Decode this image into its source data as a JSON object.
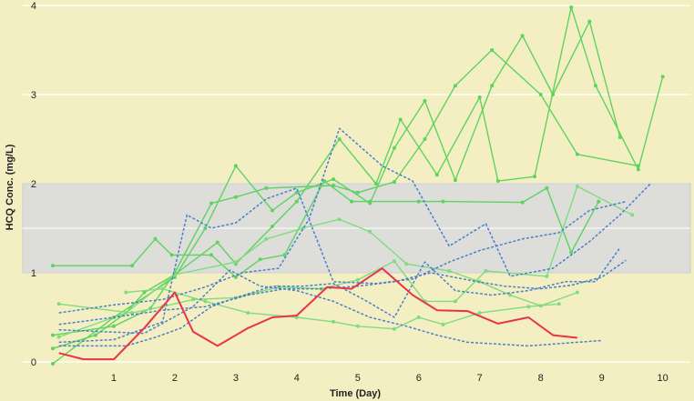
{
  "colors": {
    "background": "#f4efc3",
    "gridline": "#ffffff",
    "band_fill": "#dcdcdc",
    "band_stroke": "#c9c9c9",
    "green": "#5ed35e",
    "green_light": "#7fdc7f",
    "blue_dotted": "#4a7fc9",
    "red": "#e8334a"
  },
  "chart_data": {
    "type": "line",
    "title": "",
    "xlabel": "Time (Day)",
    "ylabel": "HCQ Conc. (mg/L)",
    "xlim": [
      0,
      10.2
    ],
    "ylim": [
      0,
      4
    ],
    "x_ticks": [
      1,
      2,
      3,
      4,
      5,
      6,
      7,
      8,
      9,
      10
    ],
    "x_tick_labels": [
      "1",
      "2",
      "3",
      "4",
      "5",
      "6",
      "7",
      "8",
      "9",
      "10"
    ],
    "y_ticks": [
      0,
      1,
      2,
      3,
      4
    ],
    "y_tick_labels": [
      "0",
      "1",
      "2",
      "3",
      "4"
    ],
    "grid": true,
    "legend": "none",
    "reference_band": {
      "y_min": 1,
      "y_max": 2,
      "midline": 1.5
    },
    "series": [
      {
        "style": "green",
        "points": [
          [
            0,
            1.08
          ],
          [
            1.3,
            1.08
          ],
          [
            1.68,
            1.38
          ],
          [
            1.95,
            1.2
          ],
          [
            2.6,
            1.2
          ],
          [
            3.0,
            0.95
          ],
          [
            3.4,
            1.15
          ],
          [
            3.8,
            1.2
          ],
          [
            4.45,
            2.03
          ],
          [
            4.9,
            1.8
          ],
          [
            5.2,
            1.8
          ],
          [
            6.0,
            1.8
          ],
          [
            6.4,
            1.8
          ],
          [
            7.7,
            1.79
          ],
          [
            8.1,
            1.95
          ],
          [
            8.5,
            1.23
          ],
          [
            8.95,
            1.8
          ]
        ]
      },
      {
        "style": "green",
        "points": [
          [
            0,
            0.15
          ],
          [
            0.7,
            0.3
          ],
          [
            1.2,
            0.55
          ],
          [
            1.5,
            0.78
          ],
          [
            2.0,
            0.98
          ],
          [
            2.7,
            1.34
          ],
          [
            3.0,
            1.1
          ],
          [
            3.6,
            1.52
          ],
          [
            4.0,
            1.8
          ],
          [
            4.7,
            2.5
          ],
          [
            5.3,
            2.0
          ],
          [
            5.7,
            2.72
          ],
          [
            6.3,
            2.1
          ],
          [
            7.0,
            2.97
          ],
          [
            7.3,
            2.03
          ],
          [
            7.9,
            2.08
          ],
          [
            8.5,
            3.98
          ],
          [
            8.9,
            3.1
          ],
          [
            9.6,
            2.16
          ],
          [
            10.0,
            3.2
          ]
        ]
      },
      {
        "style": "green",
        "points": [
          [
            0,
            -0.02
          ],
          [
            1.0,
            0.5
          ],
          [
            2.0,
            0.95
          ],
          [
            2.5,
            1.5
          ],
          [
            3.0,
            2.2
          ],
          [
            3.6,
            1.7
          ],
          [
            4.0,
            1.9
          ],
          [
            4.6,
            2.05
          ],
          [
            5.2,
            1.78
          ],
          [
            5.6,
            2.4
          ],
          [
            6.1,
            2.93
          ],
          [
            6.6,
            2.04
          ],
          [
            7.2,
            3.1
          ],
          [
            7.7,
            3.66
          ],
          [
            8.2,
            3.0
          ],
          [
            8.8,
            3.82
          ],
          [
            9.3,
            2.52
          ]
        ]
      },
      {
        "style": "green",
        "points": [
          [
            0,
            0.3
          ],
          [
            1.0,
            0.4
          ],
          [
            1.6,
            0.6
          ],
          [
            2.0,
            1.0
          ],
          [
            2.6,
            1.78
          ],
          [
            3.0,
            1.85
          ],
          [
            3.5,
            1.95
          ],
          [
            4.6,
            1.98
          ],
          [
            5.0,
            1.9
          ],
          [
            5.6,
            2.02
          ],
          [
            6.1,
            2.5
          ],
          [
            6.6,
            3.1
          ],
          [
            7.2,
            3.5
          ],
          [
            8.0,
            3.0
          ],
          [
            8.6,
            2.33
          ],
          [
            9.6,
            2.2
          ]
        ]
      },
      {
        "style": "green_light",
        "points": [
          [
            0.1,
            0.65
          ],
          [
            1.3,
            0.55
          ],
          [
            1.8,
            0.62
          ],
          [
            2.3,
            0.7
          ],
          [
            3.0,
            0.72
          ],
          [
            3.7,
            0.84
          ],
          [
            4.4,
            0.82
          ],
          [
            5.0,
            0.92
          ],
          [
            5.6,
            1.13
          ],
          [
            6.1,
            0.68
          ],
          [
            6.6,
            0.68
          ],
          [
            7.1,
            1.02
          ],
          [
            8.1,
            0.96
          ],
          [
            8.6,
            1.97
          ],
          [
            9.5,
            1.65
          ]
        ]
      },
      {
        "style": "green_light",
        "points": [
          [
            0.1,
            0.28
          ],
          [
            1.2,
            0.55
          ],
          [
            2.0,
            0.98
          ],
          [
            3.0,
            1.12
          ],
          [
            3.5,
            1.38
          ],
          [
            4.1,
            1.5
          ],
          [
            4.7,
            1.6
          ],
          [
            5.2,
            1.46
          ],
          [
            5.8,
            1.1
          ],
          [
            6.5,
            1.02
          ],
          [
            7.0,
            0.9
          ],
          [
            7.5,
            0.75
          ],
          [
            8.0,
            0.63
          ],
          [
            8.6,
            0.78
          ]
        ]
      },
      {
        "style": "green_light",
        "points": [
          [
            1.2,
            0.78
          ],
          [
            1.8,
            0.82
          ],
          [
            2.5,
            0.68
          ],
          [
            3.2,
            0.55
          ],
          [
            4.0,
            0.5
          ],
          [
            4.6,
            0.45
          ],
          [
            5.0,
            0.4
          ],
          [
            5.6,
            0.37
          ],
          [
            6.0,
            0.5
          ],
          [
            6.4,
            0.42
          ],
          [
            7.0,
            0.55
          ],
          [
            7.8,
            0.62
          ],
          [
            8.3,
            0.65
          ]
        ]
      },
      {
        "style": "blue_dotted",
        "points": [
          [
            0.1,
            0.55
          ],
          [
            1.0,
            0.64
          ],
          [
            1.8,
            0.7
          ],
          [
            2.5,
            0.84
          ],
          [
            3.1,
            1.0
          ],
          [
            3.7,
            1.05
          ],
          [
            4.2,
            1.6
          ],
          [
            4.7,
            2.62
          ],
          [
            5.4,
            2.2
          ],
          [
            5.9,
            2.03
          ],
          [
            6.5,
            1.3
          ],
          [
            7.1,
            1.55
          ],
          [
            7.5,
            0.96
          ],
          [
            8.2,
            1.05
          ],
          [
            8.8,
            1.35
          ],
          [
            9.3,
            1.65
          ],
          [
            9.8,
            2.0
          ]
        ]
      },
      {
        "style": "blue_dotted",
        "points": [
          [
            0.1,
            0.22
          ],
          [
            1.0,
            0.25
          ],
          [
            1.8,
            0.45
          ],
          [
            2.2,
            1.65
          ],
          [
            2.6,
            1.5
          ],
          [
            3.0,
            1.56
          ],
          [
            3.5,
            1.83
          ],
          [
            4.0,
            1.95
          ],
          [
            4.6,
            0.9
          ],
          [
            5.3,
            0.88
          ],
          [
            5.9,
            0.93
          ],
          [
            6.5,
            1.12
          ],
          [
            7.0,
            1.25
          ],
          [
            7.7,
            1.38
          ],
          [
            8.3,
            1.45
          ],
          [
            8.8,
            1.7
          ],
          [
            9.4,
            1.8
          ]
        ]
      },
      {
        "style": "blue_dotted",
        "points": [
          [
            0.1,
            0.18
          ],
          [
            0.7,
            0.18
          ],
          [
            1.2,
            0.18
          ],
          [
            1.7,
            0.28
          ],
          [
            2.1,
            0.38
          ],
          [
            2.6,
            0.62
          ],
          [
            3.0,
            0.72
          ],
          [
            3.6,
            0.85
          ],
          [
            4.1,
            0.85
          ],
          [
            4.6,
            0.88
          ],
          [
            5.1,
            0.7
          ],
          [
            5.6,
            0.5
          ],
          [
            6.1,
            1.12
          ],
          [
            6.6,
            0.8
          ],
          [
            7.2,
            0.75
          ],
          [
            7.8,
            0.8
          ],
          [
            8.4,
            0.9
          ],
          [
            8.9,
            0.9
          ],
          [
            9.3,
            1.28
          ]
        ]
      },
      {
        "style": "blue_dotted",
        "points": [
          [
            0.1,
            0.36
          ],
          [
            0.8,
            0.34
          ],
          [
            1.5,
            0.32
          ],
          [
            2.3,
            0.62
          ],
          [
            2.9,
            1.03
          ],
          [
            3.4,
            0.85
          ],
          [
            4.0,
            0.8
          ],
          [
            4.6,
            0.68
          ],
          [
            5.2,
            0.5
          ],
          [
            5.8,
            0.4
          ],
          [
            6.3,
            0.3
          ],
          [
            6.8,
            0.22
          ],
          [
            7.3,
            0.2
          ],
          [
            7.8,
            0.18
          ],
          [
            8.2,
            0.2
          ],
          [
            8.6,
            0.22
          ],
          [
            9.0,
            0.24
          ]
        ]
      },
      {
        "style": "blue_dotted",
        "points": [
          [
            0.1,
            0.42
          ],
          [
            1.0,
            0.5
          ],
          [
            1.8,
            0.58
          ],
          [
            2.5,
            0.62
          ],
          [
            3.2,
            0.75
          ],
          [
            3.8,
            0.82
          ],
          [
            4.4,
            0.82
          ],
          [
            5.0,
            0.85
          ],
          [
            5.6,
            0.9
          ],
          [
            6.2,
            1.0
          ],
          [
            6.8,
            0.92
          ],
          [
            7.4,
            0.85
          ],
          [
            8.0,
            0.82
          ],
          [
            8.5,
            0.86
          ],
          [
            9.0,
            0.95
          ],
          [
            9.4,
            1.14
          ]
        ]
      },
      {
        "style": "red",
        "points": [
          [
            0.1,
            0.1
          ],
          [
            0.5,
            0.03
          ],
          [
            1.0,
            0.03
          ],
          [
            1.5,
            0.38
          ],
          [
            2.0,
            0.78
          ],
          [
            2.3,
            0.34
          ],
          [
            2.7,
            0.18
          ],
          [
            3.2,
            0.38
          ],
          [
            3.6,
            0.5
          ],
          [
            4.0,
            0.52
          ],
          [
            4.5,
            0.84
          ],
          [
            4.9,
            0.82
          ],
          [
            5.4,
            1.05
          ],
          [
            5.9,
            0.75
          ],
          [
            6.3,
            0.58
          ],
          [
            6.8,
            0.57
          ],
          [
            7.3,
            0.43
          ],
          [
            7.8,
            0.5
          ],
          [
            8.2,
            0.3
          ],
          [
            8.6,
            0.27
          ]
        ]
      }
    ]
  }
}
